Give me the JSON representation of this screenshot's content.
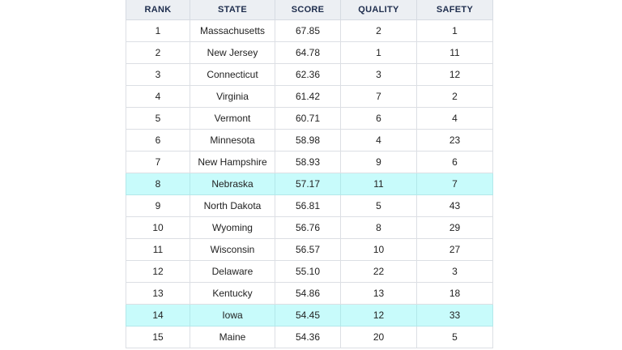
{
  "table": {
    "headers": [
      "RANK",
      "STATE",
      "SCORE",
      "QUALITY",
      "SAFETY"
    ],
    "highlight_color": "#c8fbfb",
    "rows": [
      {
        "rank": "1",
        "state": "Massachusetts",
        "score": "67.85",
        "quality": "2",
        "safety": "1",
        "highlight": false
      },
      {
        "rank": "2",
        "state": "New Jersey",
        "score": "64.78",
        "quality": "1",
        "safety": "11",
        "highlight": false
      },
      {
        "rank": "3",
        "state": "Connecticut",
        "score": "62.36",
        "quality": "3",
        "safety": "12",
        "highlight": false
      },
      {
        "rank": "4",
        "state": "Virginia",
        "score": "61.42",
        "quality": "7",
        "safety": "2",
        "highlight": false
      },
      {
        "rank": "5",
        "state": "Vermont",
        "score": "60.71",
        "quality": "6",
        "safety": "4",
        "highlight": false
      },
      {
        "rank": "6",
        "state": "Minnesota",
        "score": "58.98",
        "quality": "4",
        "safety": "23",
        "highlight": false
      },
      {
        "rank": "7",
        "state": "New Hampshire",
        "score": "58.93",
        "quality": "9",
        "safety": "6",
        "highlight": false
      },
      {
        "rank": "8",
        "state": "Nebraska",
        "score": "57.17",
        "quality": "11",
        "safety": "7",
        "highlight": true
      },
      {
        "rank": "9",
        "state": "North Dakota",
        "score": "56.81",
        "quality": "5",
        "safety": "43",
        "highlight": false
      },
      {
        "rank": "10",
        "state": "Wyoming",
        "score": "56.76",
        "quality": "8",
        "safety": "29",
        "highlight": false
      },
      {
        "rank": "11",
        "state": "Wisconsin",
        "score": "56.57",
        "quality": "10",
        "safety": "27",
        "highlight": false
      },
      {
        "rank": "12",
        "state": "Delaware",
        "score": "55.10",
        "quality": "22",
        "safety": "3",
        "highlight": false
      },
      {
        "rank": "13",
        "state": "Kentucky",
        "score": "54.86",
        "quality": "13",
        "safety": "18",
        "highlight": false
      },
      {
        "rank": "14",
        "state": "Iowa",
        "score": "54.45",
        "quality": "12",
        "safety": "33",
        "highlight": true
      },
      {
        "rank": "15",
        "state": "Maine",
        "score": "54.36",
        "quality": "20",
        "safety": "5",
        "highlight": false
      }
    ]
  }
}
